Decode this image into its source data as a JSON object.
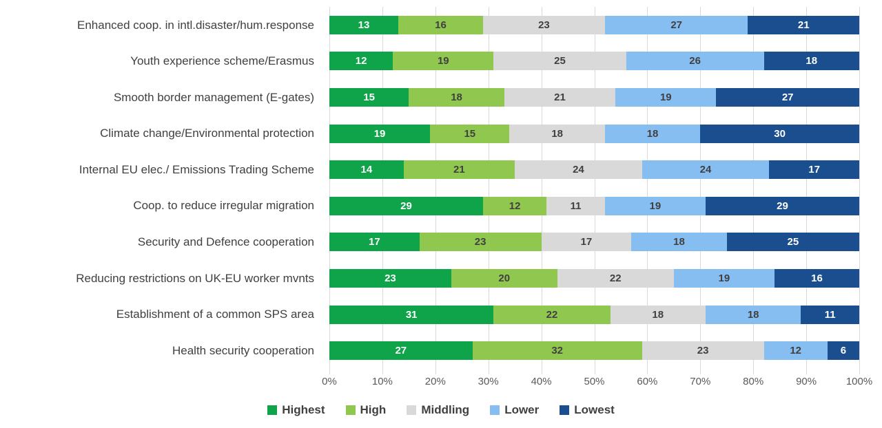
{
  "chart_data": {
    "type": "bar",
    "orientation": "horizontal",
    "stacked": true,
    "grid": true,
    "title": "",
    "xlabel": "",
    "ylabel": "",
    "categories": [
      "Enhanced coop. in intl.disaster/hum.response",
      "Youth experience scheme/Erasmus",
      "Smooth border management (E-gates)",
      "Climate change/Environmental protection",
      "Internal EU elec./ Emissions Trading Scheme",
      "Coop. to reduce irregular migration",
      "Security and Defence cooperation",
      "Reducing restrictions on UK-EU worker mvnts",
      "Establishment of a common SPS area",
      "Health security cooperation"
    ],
    "series": [
      {
        "name": "Highest",
        "color": "#0fa44a",
        "label_color": "#ffffff",
        "values": [
          13,
          12,
          15,
          19,
          14,
          29,
          17,
          23,
          31,
          27
        ]
      },
      {
        "name": "High",
        "color": "#90c84f",
        "label_color": "#404040",
        "values": [
          16,
          19,
          18,
          15,
          21,
          12,
          23,
          20,
          22,
          32
        ]
      },
      {
        "name": "Middling",
        "color": "#d9d9d9",
        "label_color": "#404040",
        "values": [
          23,
          25,
          21,
          18,
          24,
          11,
          17,
          22,
          18,
          23
        ]
      },
      {
        "name": "Lower",
        "color": "#87bef2",
        "label_color": "#404040",
        "values": [
          27,
          26,
          19,
          18,
          24,
          19,
          18,
          19,
          18,
          12
        ]
      },
      {
        "name": "Lowest",
        "color": "#1a4e8f",
        "label_color": "#ffffff",
        "values": [
          21,
          18,
          27,
          30,
          17,
          29,
          25,
          16,
          11,
          6
        ]
      }
    ],
    "x_axis": {
      "min": 0,
      "max": 100,
      "tick_step": 10,
      "ticks": [
        "0%",
        "10%",
        "20%",
        "30%",
        "40%",
        "50%",
        "60%",
        "70%",
        "80%",
        "90%",
        "100%"
      ]
    },
    "legend": {
      "position": "bottom",
      "entries": [
        "Highest",
        "High",
        "Middling",
        "Lower",
        "Lowest"
      ]
    },
    "style": {
      "gridline_color": "#d9d9d9",
      "category_label_color": "#404040",
      "axis_label_color": "#595959",
      "legend_label_color": "#404040",
      "background": "#ffffff"
    }
  }
}
